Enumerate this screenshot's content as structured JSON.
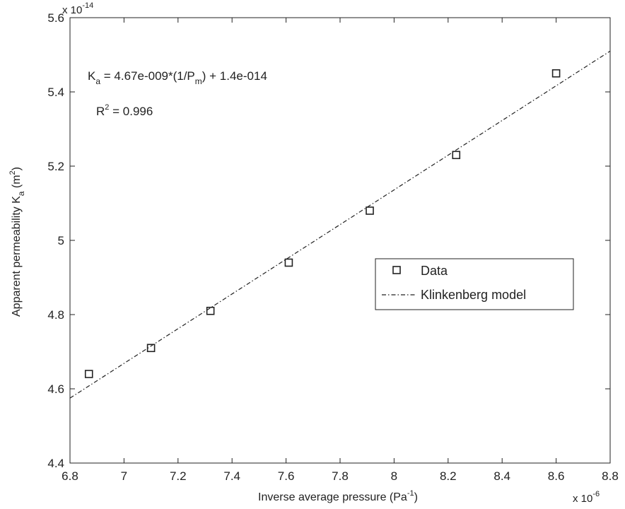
{
  "chart_data": {
    "type": "scatter",
    "title": "",
    "xlabel": {
      "main": "Inverse average pressure (Pa",
      "sup": "-1",
      "tail": ")"
    },
    "ylabel": {
      "main": "Apparent permeability K",
      "sub": "a",
      "unit_open": " (m",
      "sup": "2",
      "tail": ")"
    },
    "x_exponent": {
      "base": "x 10",
      "power": "-6"
    },
    "y_exponent": {
      "base": "x 10",
      "power": "-14"
    },
    "xlim": [
      6.8,
      8.8
    ],
    "ylim": [
      4.4,
      5.6
    ],
    "xticks": [
      6.8,
      7,
      7.2,
      7.4,
      7.6,
      7.8,
      8,
      8.2,
      8.4,
      8.6,
      8.8
    ],
    "xtick_labels": [
      "6.8",
      "7",
      "7.2",
      "7.4",
      "7.6",
      "7.8",
      "8",
      "8.2",
      "8.4",
      "8.6",
      "8.8"
    ],
    "yticks": [
      4.4,
      4.6,
      4.8,
      5,
      5.2,
      5.4,
      5.6
    ],
    "ytick_labels": [
      "4.4",
      "4.6",
      "4.8",
      "5",
      "5.2",
      "5.4",
      "5.6"
    ],
    "grid": false,
    "legend_position": "center-right",
    "series": [
      {
        "name": "Data",
        "kind": "scatter",
        "marker": "square",
        "x": [
          6.87,
          7.1,
          7.32,
          7.61,
          7.91,
          8.23,
          8.6
        ],
        "y": [
          4.64,
          4.71,
          4.81,
          4.94,
          5.08,
          5.23,
          5.45
        ]
      },
      {
        "name": "Klinkenberg model",
        "kind": "line",
        "style": "dash-dot",
        "x": [
          6.8,
          8.8
        ],
        "y": [
          4.575,
          5.51
        ]
      }
    ],
    "annotations": {
      "equation": {
        "k": "K",
        "k_sub": "a",
        "mid": " = 4.67e-009*(1/P",
        "p_sub": "m",
        "tail": ") + 1.4e-014"
      },
      "r2": {
        "r": "R",
        "sup": "2",
        "tail": " = 0.996"
      }
    }
  }
}
